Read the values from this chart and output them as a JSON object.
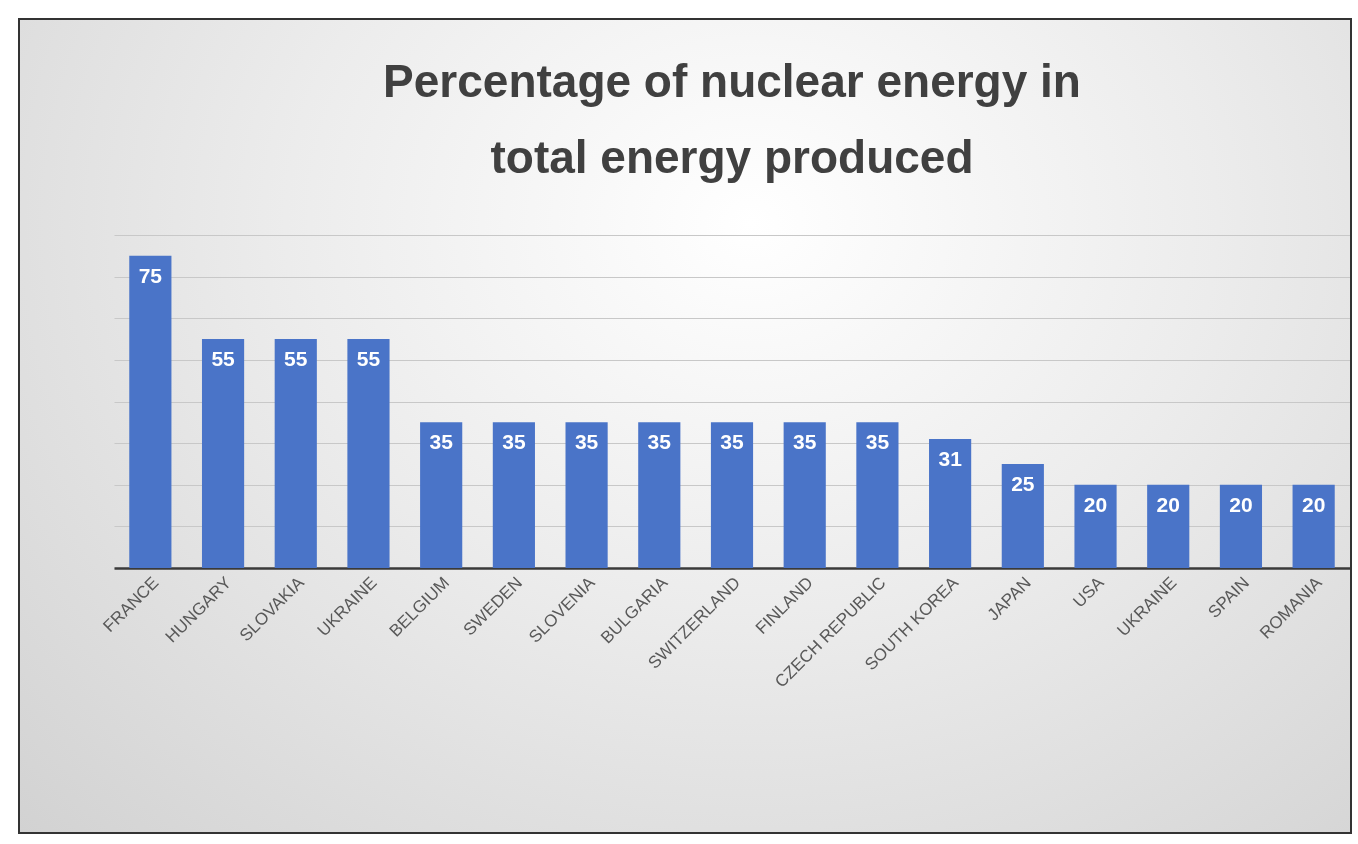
{
  "chart_data": {
    "type": "bar",
    "title": "Percentage of nuclear energy in total energy produced",
    "categories": [
      "FRANCE",
      "HUNGARY",
      "SLOVAKIA",
      "UKRAINE",
      "BELGIUM",
      "SWEDEN",
      "SLOVENIA",
      "BULGARIA",
      "SWITZERLAND",
      "FINLAND",
      "CZECH REPUBLIC",
      "SOUTH KOREA",
      "JAPAN",
      "USA",
      "UKRAINE",
      "SPAIN",
      "ROMANIA"
    ],
    "values": [
      75,
      55,
      55,
      55,
      35,
      35,
      35,
      35,
      35,
      35,
      35,
      31,
      25,
      20,
      20,
      20,
      20
    ],
    "color": "#4a74c8",
    "data_labels": true,
    "ylim": [
      0,
      80
    ],
    "yticks": [
      {
        "value": 0,
        "label": null
      },
      {
        "value": 10,
        "label": null
      },
      {
        "value": 20,
        "label": null
      },
      {
        "value": 30,
        "label": null
      },
      {
        "value": 40,
        "label": null
      },
      {
        "value": 50,
        "label": null
      },
      {
        "value": 60,
        "label": null
      },
      {
        "value": 70,
        "label": null
      },
      {
        "value": 80,
        "label": null
      }
    ],
    "grid": "y",
    "tick_labels": "x"
  }
}
